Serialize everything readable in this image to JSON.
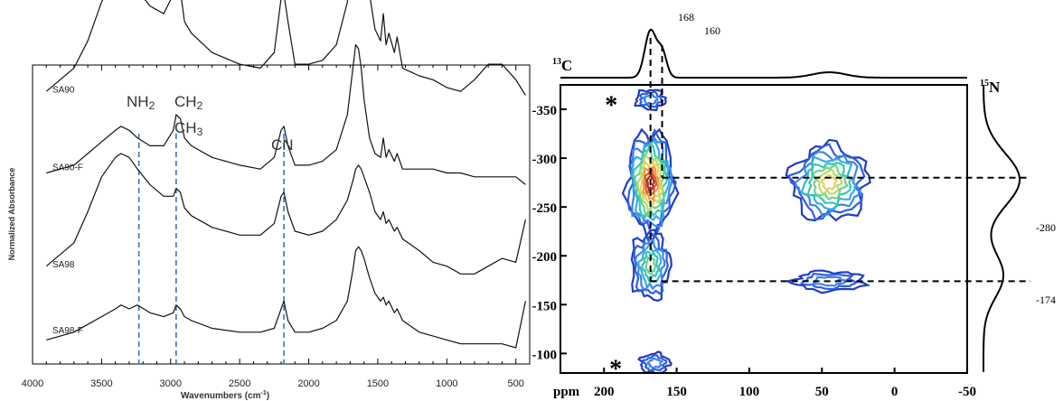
{
  "chart_data": [
    {
      "type": "line",
      "xlabel": "Wavenumbers (cm⁻¹)",
      "ylabel": "Normalized Absorbance",
      "xlim": [
        4000,
        400
      ],
      "x_reversed": true,
      "xticks": [
        4000,
        3500,
        3000,
        2500,
        2000,
        1500,
        1000,
        500
      ],
      "grid": false,
      "series": [
        {
          "name": "SA90",
          "offset": 0.64,
          "x": [
            3900,
            3700,
            3600,
            3500,
            3400,
            3360,
            3300,
            3240,
            3150,
            3050,
            2980,
            2960,
            2930,
            2900,
            2850,
            2700,
            2500,
            2350,
            2250,
            2200,
            2180,
            2150,
            2100,
            2000,
            1900,
            1800,
            1720,
            1680,
            1660,
            1640,
            1620,
            1600,
            1560,
            1520,
            1480,
            1460,
            1440,
            1420,
            1380,
            1360,
            1320,
            1200,
            1100,
            1000,
            900,
            800,
            700,
            600,
            500,
            430
          ],
          "y": [
            0.02,
            0.08,
            0.15,
            0.25,
            0.32,
            0.33,
            0.31,
            0.28,
            0.24,
            0.22,
            0.27,
            0.3,
            0.28,
            0.2,
            0.17,
            0.12,
            0.09,
            0.08,
            0.12,
            0.26,
            0.27,
            0.2,
            0.09,
            0.09,
            0.1,
            0.14,
            0.25,
            0.4,
            0.52,
            0.55,
            0.5,
            0.4,
            0.27,
            0.18,
            0.15,
            0.22,
            0.14,
            0.17,
            0.12,
            0.16,
            0.08,
            0.06,
            0.05,
            0.03,
            0.02,
            0.05,
            0.09,
            0.09,
            0.05,
            0.01
          ]
        },
        {
          "name": "SA90-F",
          "offset": 0.44,
          "x": [
            3900,
            3700,
            3600,
            3500,
            3400,
            3360,
            3300,
            3240,
            3150,
            3050,
            2980,
            2960,
            2930,
            2900,
            2850,
            2700,
            2500,
            2350,
            2250,
            2200,
            2180,
            2150,
            2100,
            2000,
            1900,
            1800,
            1720,
            1680,
            1660,
            1640,
            1620,
            1600,
            1560,
            1520,
            1480,
            1460,
            1440,
            1420,
            1380,
            1360,
            1320,
            1200,
            1100,
            1000,
            900,
            800,
            700,
            600,
            500,
            430
          ],
          "y": [
            0.01,
            0.03,
            0.06,
            0.09,
            0.12,
            0.13,
            0.12,
            0.1,
            0.08,
            0.08,
            0.12,
            0.16,
            0.15,
            0.1,
            0.08,
            0.05,
            0.03,
            0.02,
            0.05,
            0.12,
            0.13,
            0.08,
            0.03,
            0.03,
            0.04,
            0.07,
            0.16,
            0.28,
            0.34,
            0.33,
            0.28,
            0.2,
            0.1,
            0.06,
            0.05,
            0.1,
            0.05,
            0.07,
            0.04,
            0.06,
            0.02,
            0.02,
            0.02,
            0.01,
            0.01,
            0.0,
            0.0,
            0.0,
            0.0,
            -0.02
          ]
        },
        {
          "name": "SA98",
          "offset": 0.19,
          "x": [
            3900,
            3700,
            3600,
            3500,
            3400,
            3360,
            3300,
            3240,
            3150,
            3050,
            2980,
            2960,
            2930,
            2900,
            2850,
            2700,
            2500,
            2350,
            2250,
            2200,
            2180,
            2150,
            2100,
            2000,
            1900,
            1800,
            1720,
            1680,
            1660,
            1640,
            1620,
            1600,
            1560,
            1520,
            1480,
            1460,
            1440,
            1420,
            1380,
            1360,
            1320,
            1200,
            1100,
            1000,
            900,
            800,
            700,
            600,
            500,
            430
          ],
          "y": [
            0.02,
            0.08,
            0.16,
            0.25,
            0.3,
            0.31,
            0.3,
            0.27,
            0.23,
            0.2,
            0.2,
            0.22,
            0.21,
            0.17,
            0.15,
            0.12,
            0.1,
            0.1,
            0.13,
            0.2,
            0.21,
            0.16,
            0.11,
            0.1,
            0.11,
            0.14,
            0.19,
            0.24,
            0.27,
            0.28,
            0.27,
            0.25,
            0.21,
            0.16,
            0.14,
            0.16,
            0.13,
            0.14,
            0.11,
            0.12,
            0.09,
            0.06,
            0.03,
            0.02,
            0.0,
            0.0,
            0.02,
            0.04,
            0.03,
            0.14
          ]
        },
        {
          "name": "SA98-F",
          "offset": 0.02,
          "x": [
            3900,
            3700,
            3600,
            3500,
            3400,
            3360,
            3300,
            3240,
            3150,
            3050,
            2980,
            2960,
            2930,
            2900,
            2850,
            2700,
            2500,
            2350,
            2250,
            2200,
            2180,
            2150,
            2100,
            2000,
            1900,
            1800,
            1720,
            1680,
            1660,
            1640,
            1620,
            1600,
            1560,
            1520,
            1480,
            1460,
            1440,
            1420,
            1380,
            1360,
            1320,
            1200,
            1100,
            1000,
            900,
            800,
            700,
            600,
            500,
            430
          ],
          "y": [
            0.0,
            0.02,
            0.04,
            0.06,
            0.08,
            0.09,
            0.08,
            0.09,
            0.07,
            0.06,
            0.07,
            0.09,
            0.08,
            0.06,
            0.05,
            0.03,
            0.02,
            0.02,
            0.03,
            0.08,
            0.1,
            0.05,
            0.02,
            0.02,
            0.03,
            0.05,
            0.1,
            0.18,
            0.23,
            0.24,
            0.23,
            0.21,
            0.16,
            0.12,
            0.1,
            0.11,
            0.09,
            0.1,
            0.07,
            0.08,
            0.05,
            0.02,
            0.01,
            0.0,
            -0.01,
            -0.01,
            -0.01,
            -0.01,
            -0.02,
            0.1
          ]
        }
      ],
      "annotations": [
        {
          "text": "NH₂",
          "x": 3230
        },
        {
          "text": "CH₂",
          "x": 2960
        },
        {
          "text": "CH₃",
          "x": 2960
        },
        {
          "text": "CN",
          "x": 2180
        }
      ],
      "marker_lines": [
        3230,
        2960,
        2180
      ],
      "marker_color": "#3b72b8"
    },
    {
      "type": "heatmap",
      "subtype": "2D 13C-15N correlation contour plot",
      "xlabel": "ppm",
      "xlim": [
        230,
        -50
      ],
      "ylim": [
        -375,
        -80
      ],
      "x_reversed": true,
      "xticks": [
        200,
        150,
        100,
        50,
        0,
        -50
      ],
      "yticks": [
        -350,
        -300,
        -250,
        -200,
        -150,
        -100
      ],
      "top_projection_label": "13C",
      "right_projection_label": "15N",
      "top_peak_labels": [
        "168",
        "160"
      ],
      "right_peak_labels": [
        "-280",
        "-174"
      ],
      "top_peaks": [
        168,
        160
      ],
      "right_peaks": [
        -280,
        -174
      ],
      "peaks": [
        {
          "x": 168,
          "y": -275,
          "levels": 11,
          "rx": 16,
          "ry": 52
        },
        {
          "x": 168,
          "y": -190,
          "levels": 6,
          "rx": 13,
          "ry": 34
        },
        {
          "x": 45,
          "y": -275,
          "levels": 8,
          "rx": 26,
          "ry": 38
        },
        {
          "x": 45,
          "y": -174,
          "levels": 3,
          "rx": 24,
          "ry": 10
        },
        {
          "x": 168,
          "y": -360,
          "levels": 3,
          "rx": 10,
          "ry": 10
        },
        {
          "x": 165,
          "y": -90,
          "levels": 3,
          "rx": 10,
          "ry": 10
        }
      ],
      "asterisks": [
        {
          "text": "*",
          "x": 195,
          "y": -355
        },
        {
          "text": "*",
          "x": 192,
          "y": -85
        }
      ],
      "contour_colors": [
        "#1f3cc8",
        "#2f5fe0",
        "#3f86ea",
        "#38aede",
        "#34c8b4",
        "#6fd28c",
        "#b6dc6e",
        "#e8d25a",
        "#ee9a44",
        "#d85a2e",
        "#b52a1c"
      ]
    }
  ],
  "left_labels": {
    "ylabel": "Normalized Absorbance",
    "xlabel_text": "Wavenumbers (cm",
    "xlabel_sup": "-1",
    "xlabel_close": ")",
    "nh2": "NH",
    "nh2_sub": "2",
    "ch2": "CH",
    "ch2_sub": "2",
    "ch3": "CH",
    "ch3_sub": "3",
    "cn": "CN"
  },
  "right_labels": {
    "c13_sup": "13",
    "c13": "C",
    "n15_sup": "15",
    "n15": "N",
    "ppm": "ppm",
    "peak168": "168",
    "peak160": "160",
    "peak280": "-280",
    "peak174": "-174"
  }
}
